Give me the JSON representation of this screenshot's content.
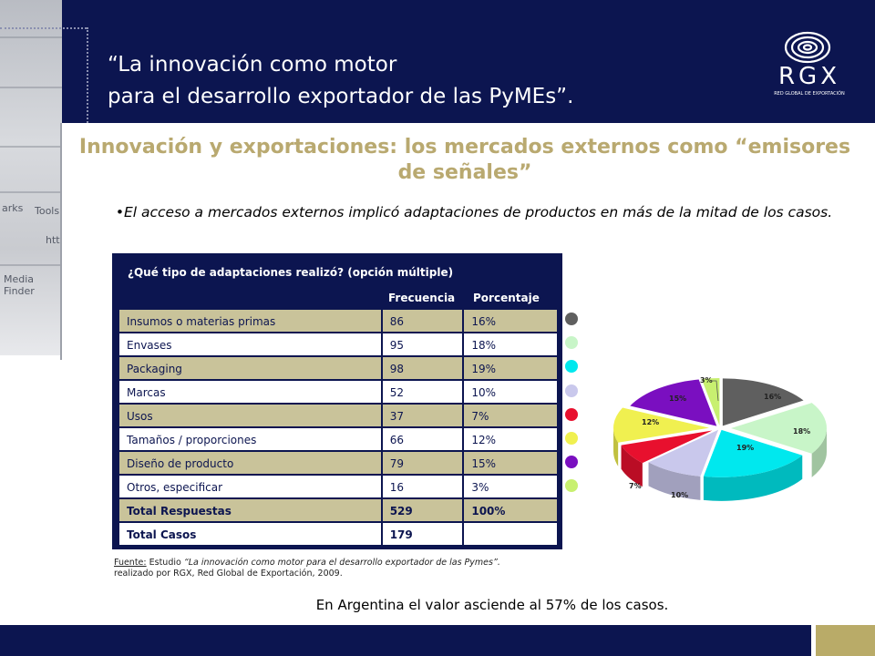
{
  "header": {
    "title_line1": "“La innovación como motor",
    "title_line2": "para el desarrollo exportador de las PyMEs”.",
    "logo_text": "RGX",
    "logo_subtext": "RED GLOBAL DE EXPORTACIÓN"
  },
  "side_photo": {
    "words": [
      "arks",
      "Tools",
      "http",
      "Media Finder"
    ]
  },
  "subtitle": "Innovación y exportaciones: los mercados externos como “emisores de señales”",
  "bullet": "•El acceso a mercados externos implicó adaptaciones de productos en más de la mitad de los casos.",
  "table": {
    "question": "¿Qué tipo de adaptaciones realizó? (opción múltiple)",
    "col_frequency": "Frecuencia",
    "col_percentage": "Porcentaje",
    "rows": [
      {
        "label": "Insumos o materias primas",
        "freq": "86",
        "pct": "16%"
      },
      {
        "label": "Envases",
        "freq": "95",
        "pct": "18%"
      },
      {
        "label": "Packaging",
        "freq": "98",
        "pct": "19%"
      },
      {
        "label": "Marcas",
        "freq": "52",
        "pct": "10%"
      },
      {
        "label": "Usos",
        "freq": "37",
        "pct": "7%"
      },
      {
        "label": "Tamaños / proporciones",
        "freq": "66",
        "pct": "12%"
      },
      {
        "label": "Diseño de producto",
        "freq": "79",
        "pct": "15%"
      },
      {
        "label": "Otros, especificar",
        "freq": "16",
        "pct": "3%"
      }
    ],
    "total_responses": {
      "label": "Total Respuestas",
      "freq": "529",
      "pct": "100%"
    },
    "total_cases": {
      "label": "Total Casos",
      "freq": "179",
      "pct": ""
    }
  },
  "source": {
    "label": "Fuente:",
    "text_italic_prefix": " Estudio ",
    "study": "“La innovación como motor para el desarrollo exportador de las Pymes”.",
    "line2": "realizado por RGX, Red Global de Exportación, 2009."
  },
  "footer_note": "En Argentina el valor asciende al 57% de los casos.",
  "colors": {
    "navy": "#0c1550",
    "gold": "#b9a970",
    "table_odd": "#c9c39a"
  },
  "chart_data": {
    "type": "pie",
    "title": "",
    "categories": [
      "Insumos o materias primas",
      "Envases",
      "Packaging",
      "Marcas",
      "Usos",
      "Tamaños / proporciones",
      "Diseño de producto",
      "Otros, especificar"
    ],
    "values": [
      16,
      18,
      19,
      10,
      7,
      12,
      15,
      3
    ],
    "labels": [
      "16%",
      "18%",
      "19%",
      "10%",
      "7%",
      "12%",
      "15%",
      "3%"
    ],
    "colors": [
      "#5f5f5f",
      "#c8f5c8",
      "#00e8ee",
      "#c9c8ec",
      "#e8102e",
      "#f0f050",
      "#7a0fc0",
      "#c8f070"
    ],
    "style": "3d-exploded"
  }
}
